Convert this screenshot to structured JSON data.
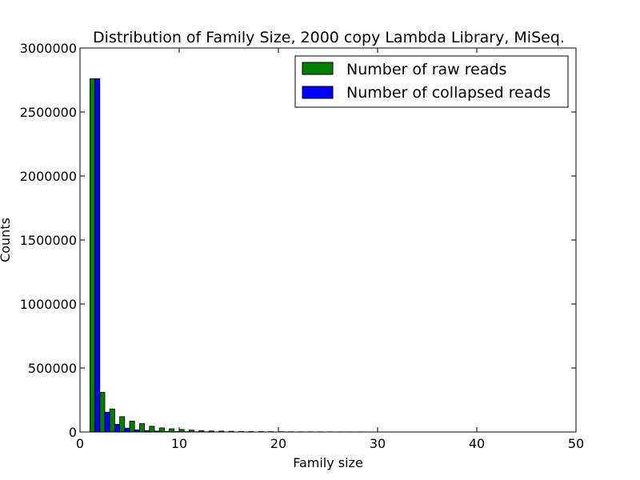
{
  "chart_data": {
    "type": "bar",
    "title": "Distribution of Family Size, 2000 copy Lambda Library, MiSeq.",
    "xlabel": "Family size",
    "ylabel": "Counts",
    "xlim": [
      0,
      50
    ],
    "ylim": [
      0,
      3000000
    ],
    "xticks": [
      "0",
      "10",
      "20",
      "30",
      "40",
      "50"
    ],
    "yticks": [
      "0",
      "500000",
      "1000000",
      "1500000",
      "2000000",
      "2500000",
      "3000000"
    ],
    "legend_position": "upper-right",
    "grid": false,
    "x": [
      1,
      2,
      3,
      4,
      5,
      6,
      7,
      8,
      9,
      10,
      11,
      12,
      13,
      14,
      15,
      16,
      17,
      18,
      19,
      20,
      21,
      22,
      23,
      24,
      25,
      26,
      27,
      28,
      29,
      30,
      31,
      32,
      33,
      34,
      35,
      36,
      37,
      38,
      39,
      40,
      41,
      42,
      43,
      44,
      45,
      46,
      47,
      48,
      49
    ],
    "series": [
      {
        "name": "Number of raw reads",
        "color": "#008000",
        "values": [
          2760000,
          310000,
          180000,
          120000,
          85000,
          65000,
          45000,
          32000,
          25000,
          20000,
          15000,
          11000,
          8000,
          7000,
          5500,
          4000,
          3500,
          3000,
          2500,
          2000,
          1800,
          1500,
          1400,
          1300,
          1200,
          1100,
          1000,
          900,
          700,
          600,
          500,
          300,
          200,
          200,
          150,
          150,
          100,
          100,
          80,
          80,
          60,
          60,
          50,
          50,
          40,
          40,
          30,
          20,
          10
        ]
      },
      {
        "name": "Number of collapsed reads",
        "color": "#0000ff",
        "values": [
          2760000,
          155000,
          60000,
          30000,
          17000,
          11000,
          7000,
          5000,
          3500,
          2500,
          2000,
          1400,
          1000,
          800,
          600,
          500,
          400,
          300,
          250,
          200,
          180,
          150,
          130,
          120,
          110,
          100,
          90,
          80,
          60,
          50,
          40,
          30,
          20,
          20,
          15,
          15,
          10,
          10,
          8,
          8,
          6,
          6,
          5,
          5,
          4,
          4,
          3,
          2,
          1
        ]
      }
    ]
  }
}
